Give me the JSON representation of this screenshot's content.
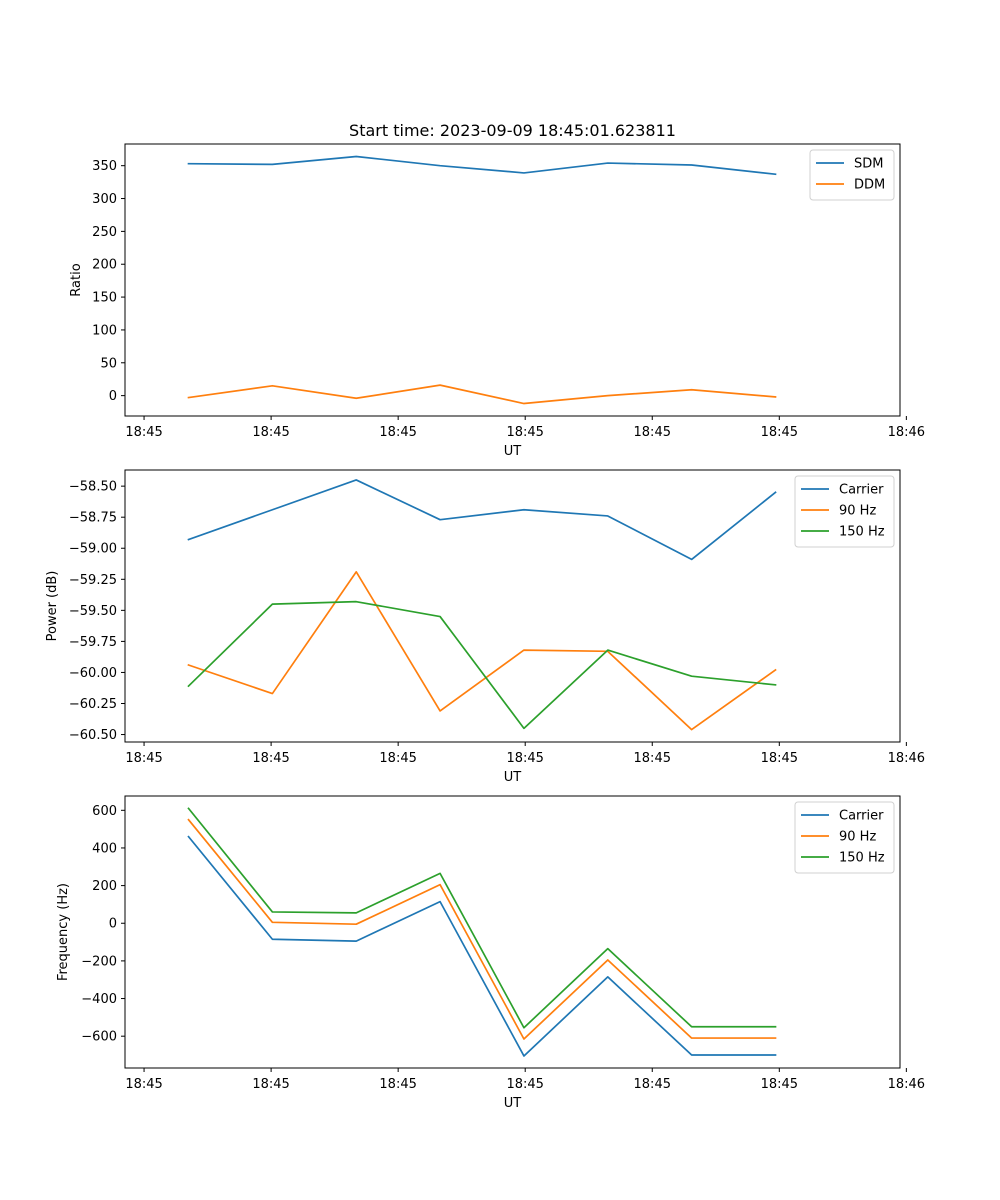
{
  "figure": {
    "title": "Start time: 2023-09-09 18:45:01.623811"
  },
  "chart_data": [
    {
      "type": "line",
      "title": "Start time: 2023-09-09 18:45:01.623811",
      "xlabel": "UT",
      "ylabel": "Ratio",
      "xlim": [
        -0.5,
        5.6
      ],
      "x": [
        0,
        0.66,
        1.32,
        1.98,
        2.64,
        3.3,
        3.96,
        4.62
      ],
      "xticks": [
        -0.35,
        0.65,
        1.65,
        2.65,
        3.65,
        4.65,
        5.65
      ],
      "xtick_labels": [
        "18:45",
        "18:45",
        "18:45",
        "18:45",
        "18:45",
        "18:45",
        "18:46"
      ],
      "ylim": [
        -31,
        383
      ],
      "yticks": [
        0,
        50,
        100,
        150,
        200,
        250,
        300,
        350
      ],
      "ytick_labels": [
        "0",
        "50",
        "100",
        "150",
        "200",
        "250",
        "300",
        "350"
      ],
      "legend": "top-right",
      "series": [
        {
          "name": "SDM",
          "color": "#1f77b4",
          "values": [
            353,
            352,
            364,
            350,
            339,
            354,
            351,
            337
          ]
        },
        {
          "name": "DDM",
          "color": "#ff7f0e",
          "values": [
            -3,
            15,
            -4,
            16,
            -12,
            0,
            9,
            -2
          ]
        }
      ]
    },
    {
      "type": "line",
      "xlabel": "UT",
      "ylabel": "Power (dB)",
      "xlim": [
        -0.5,
        5.6
      ],
      "x": [
        0,
        0.66,
        1.32,
        1.98,
        2.64,
        3.3,
        3.96,
        4.62
      ],
      "xticks": [
        -0.35,
        0.65,
        1.65,
        2.65,
        3.65,
        4.65,
        5.65
      ],
      "xtick_labels": [
        "18:45",
        "18:45",
        "18:45",
        "18:45",
        "18:45",
        "18:45",
        "18:46"
      ],
      "ylim": [
        -60.56,
        -58.37
      ],
      "yticks": [
        -58.5,
        -58.75,
        -59.0,
        -59.25,
        -59.5,
        -59.75,
        -60.0,
        -60.25,
        -60.5
      ],
      "ytick_labels": [
        "−58.50",
        "−58.75",
        "−59.00",
        "−59.25",
        "−59.50",
        "−59.75",
        "−60.00",
        "−60.25",
        "−60.50"
      ],
      "legend": "top-right",
      "series": [
        {
          "name": "Carrier",
          "color": "#1f77b4",
          "values": [
            -58.93,
            -58.69,
            -58.45,
            -58.77,
            -58.69,
            -58.74,
            -59.09,
            -58.55
          ]
        },
        {
          "name": "90 Hz",
          "color": "#ff7f0e",
          "values": [
            -59.94,
            -60.17,
            -59.19,
            -60.31,
            -59.82,
            -59.83,
            -60.46,
            -59.98
          ]
        },
        {
          "name": "150 Hz",
          "color": "#2ca02c",
          "values": [
            -60.11,
            -59.45,
            -59.43,
            -59.55,
            -60.45,
            -59.82,
            -60.03,
            -60.1
          ]
        }
      ]
    },
    {
      "type": "line",
      "xlabel": "UT",
      "ylabel": "Frequency (Hz)",
      "xlim": [
        -0.5,
        5.6
      ],
      "x": [
        0,
        0.66,
        1.32,
        1.98,
        2.64,
        3.3,
        3.96,
        4.62
      ],
      "xticks": [
        -0.35,
        0.65,
        1.65,
        2.65,
        3.65,
        4.65,
        5.65
      ],
      "xtick_labels": [
        "18:45",
        "18:45",
        "18:45",
        "18:45",
        "18:45",
        "18:45",
        "18:46"
      ],
      "ylim": [
        -769,
        676
      ],
      "yticks": [
        600,
        400,
        200,
        0,
        -200,
        -400,
        -600
      ],
      "ytick_labels": [
        "600",
        "400",
        "200",
        "0",
        "−200",
        "−400",
        "−600"
      ],
      "legend": "top-right",
      "series": [
        {
          "name": "Carrier",
          "color": "#1f77b4",
          "values": [
            460,
            -85,
            -95,
            115,
            -705,
            -285,
            -700,
            -700
          ]
        },
        {
          "name": "90 Hz",
          "color": "#ff7f0e",
          "values": [
            550,
            5,
            -5,
            205,
            -615,
            -195,
            -610,
            -610
          ]
        },
        {
          "name": "150 Hz",
          "color": "#2ca02c",
          "values": [
            610,
            60,
            55,
            265,
            -555,
            -135,
            -550,
            -550
          ]
        }
      ]
    }
  ]
}
